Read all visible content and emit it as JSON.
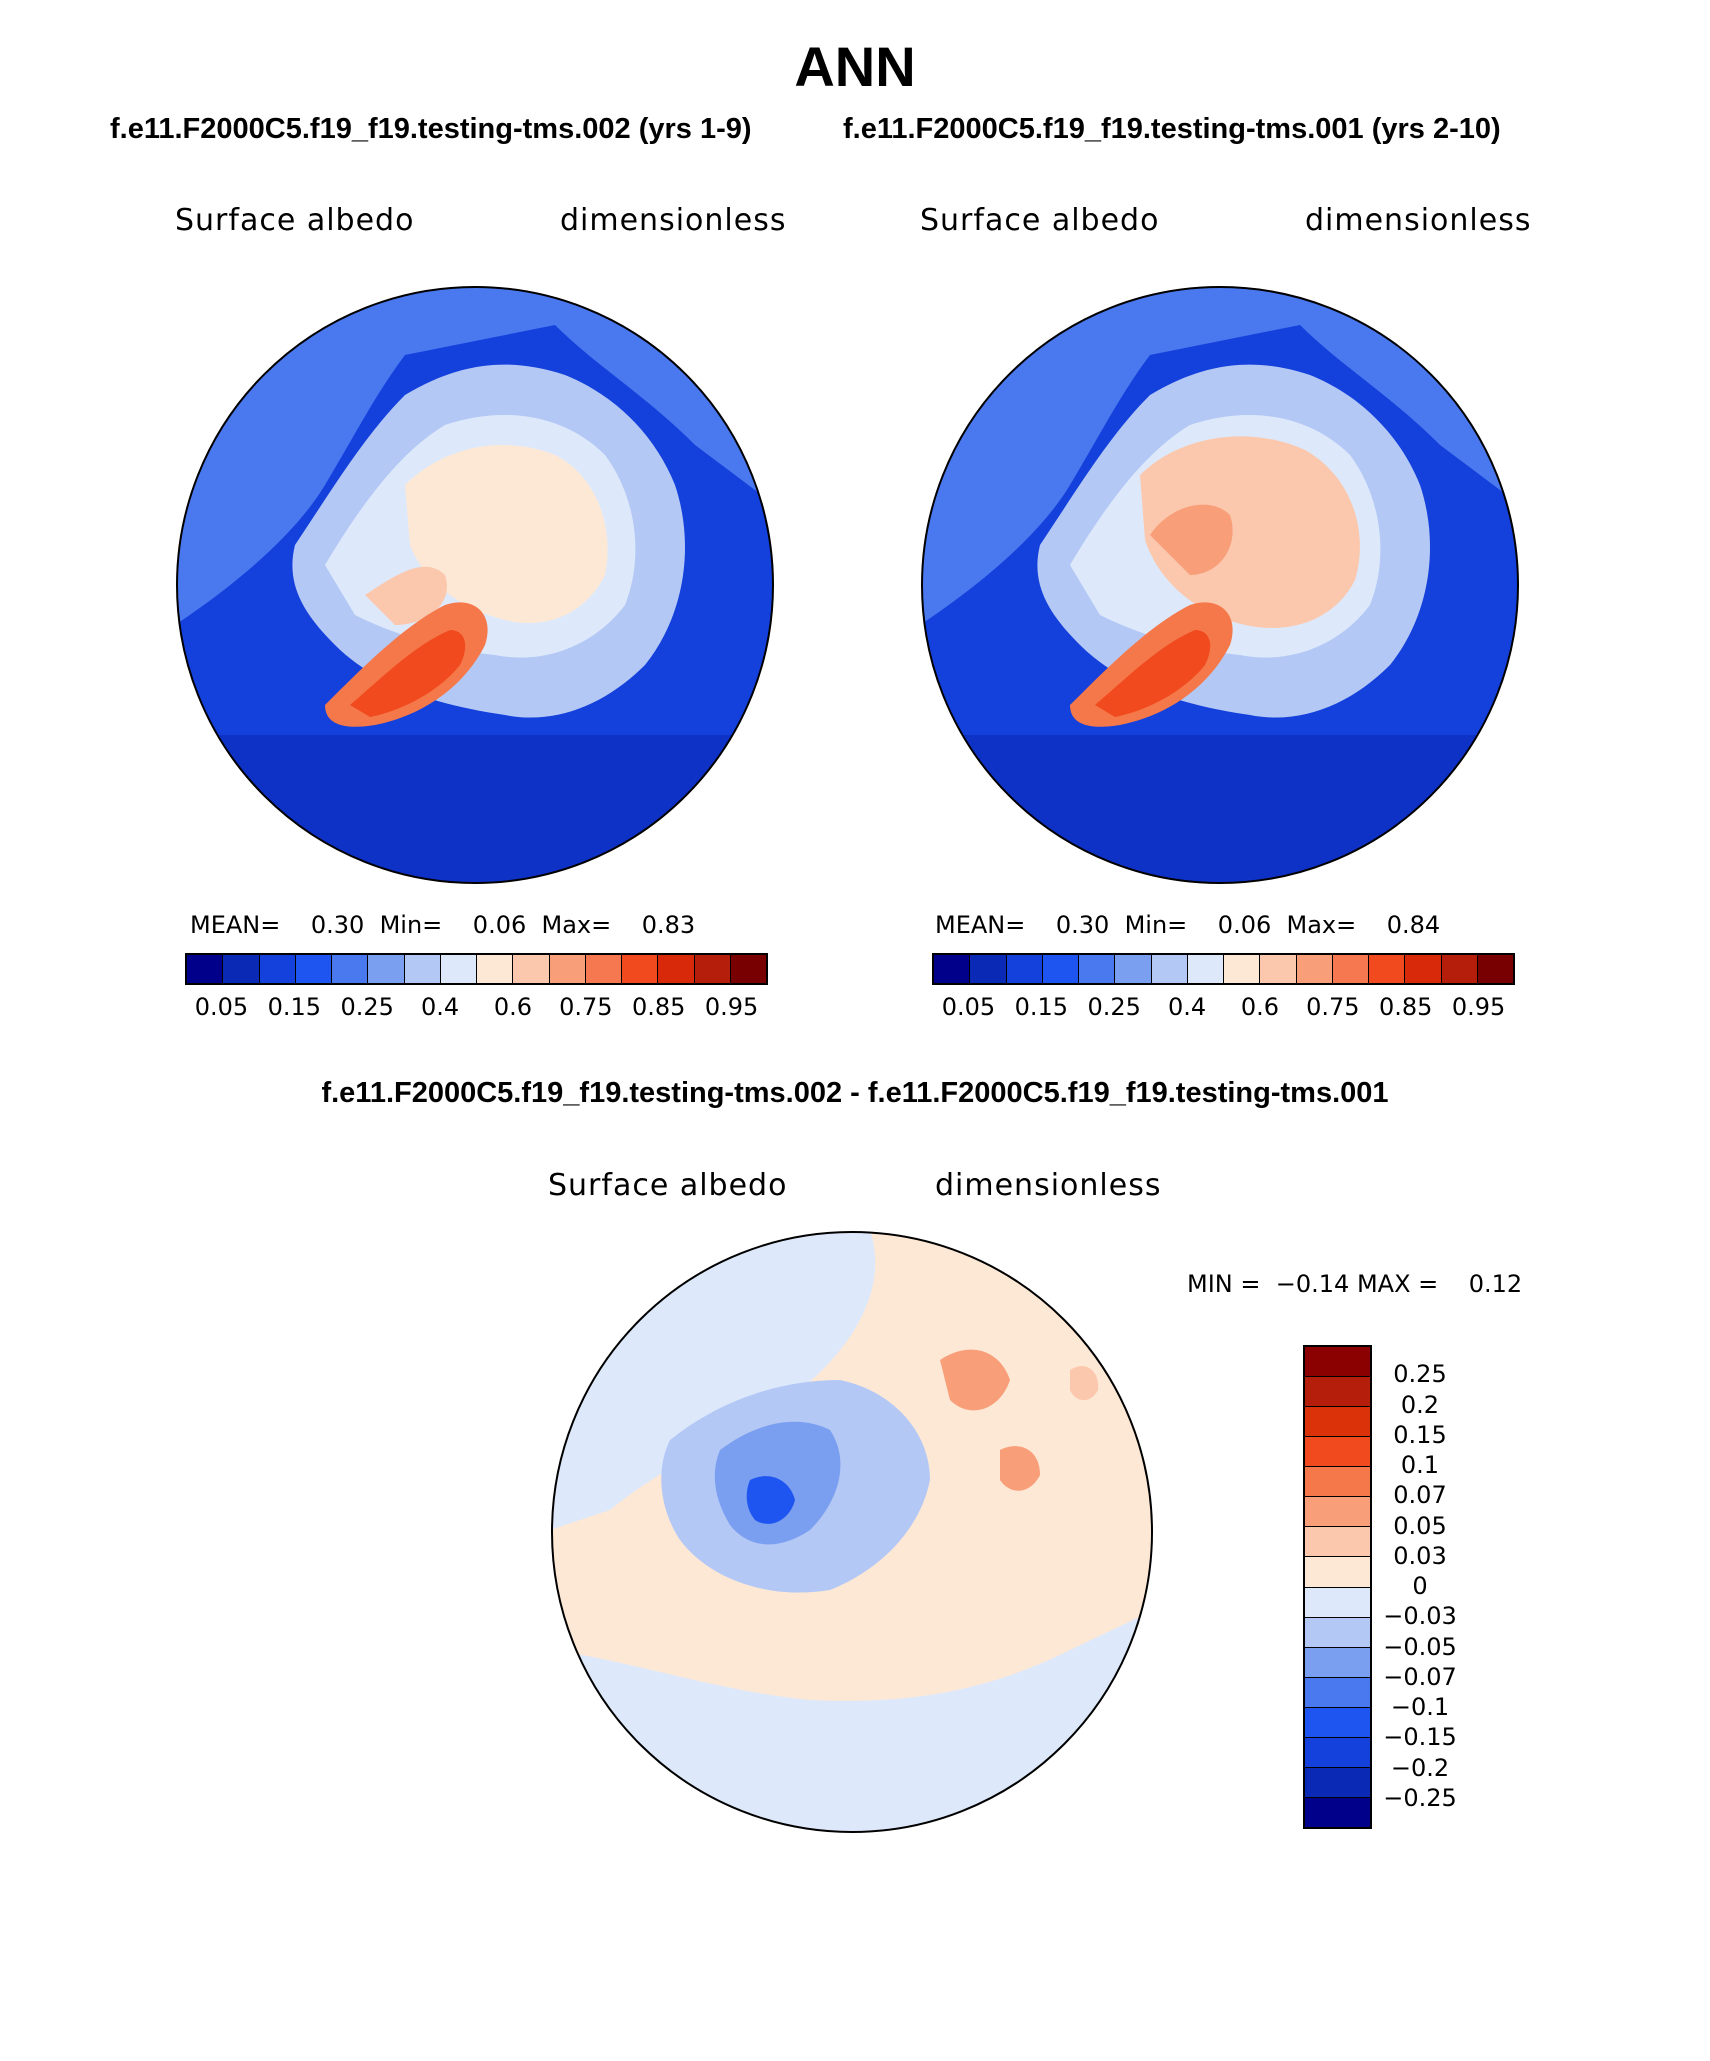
{
  "title": "ANN",
  "panel1": {
    "header": "f.e11.F2000C5.f19_f19.testing-tms.002 (yrs 1-9)",
    "left_label": "Surface albedo",
    "right_label": "dimensionless",
    "mean_label": "MEAN=",
    "mean": "0.30",
    "min_label": "Min=",
    "min": "0.06",
    "max_label": "Max=",
    "max": "0.83"
  },
  "panel2": {
    "header": "f.e11.F2000C5.f19_f19.testing-tms.001 (yrs 2-10)",
    "left_label": "Surface albedo",
    "right_label": "dimensionless",
    "mean_label": "MEAN=",
    "mean": "0.30",
    "min_label": "Min=",
    "min": "0.06",
    "max_label": "Max=",
    "max": "0.84"
  },
  "abs_colorbar": {
    "ticks": [
      "0.05",
      "0.15",
      "0.25",
      "0.4",
      "0.6",
      "0.75",
      "0.85",
      "0.95"
    ],
    "colors": [
      "#00008b",
      "#0a2ab5",
      "#1440dc",
      "#1e55f0",
      "#4a78ee",
      "#7a9ef0",
      "#b4c8f5",
      "#dde9fb",
      "#fde8d6",
      "#fbc8ad",
      "#f89e78",
      "#f57850",
      "#f04a1e",
      "#d82a0a",
      "#b41e0a",
      "#780000"
    ]
  },
  "diff": {
    "header": "f.e11.F2000C5.f19_f19.testing-tms.002 - f.e11.F2000C5.f19_f19.testing-tms.001",
    "left_label": "Surface albedo",
    "right_label": "dimensionless",
    "min_label": "MIN =",
    "min": "−0.14",
    "max_label": "MAX =",
    "max": "0.12",
    "ticks": [
      "0.25",
      "0.2",
      "0.15",
      "0.1",
      "0.07",
      "0.05",
      "0.03",
      "0",
      "−0.03",
      "−0.05",
      "−0.07",
      "−0.1",
      "−0.15",
      "−0.2",
      "−0.25"
    ],
    "colors_top_to_bottom": [
      "#8b0000",
      "#b41e0a",
      "#dc320a",
      "#f04a1e",
      "#f5784a",
      "#f89e78",
      "#fbc8ad",
      "#fde8d6",
      "#dde9fb",
      "#b4c8f5",
      "#7a9ef0",
      "#4a78ee",
      "#1e55f0",
      "#1440dc",
      "#0a2ab5",
      "#00008b"
    ]
  }
}
